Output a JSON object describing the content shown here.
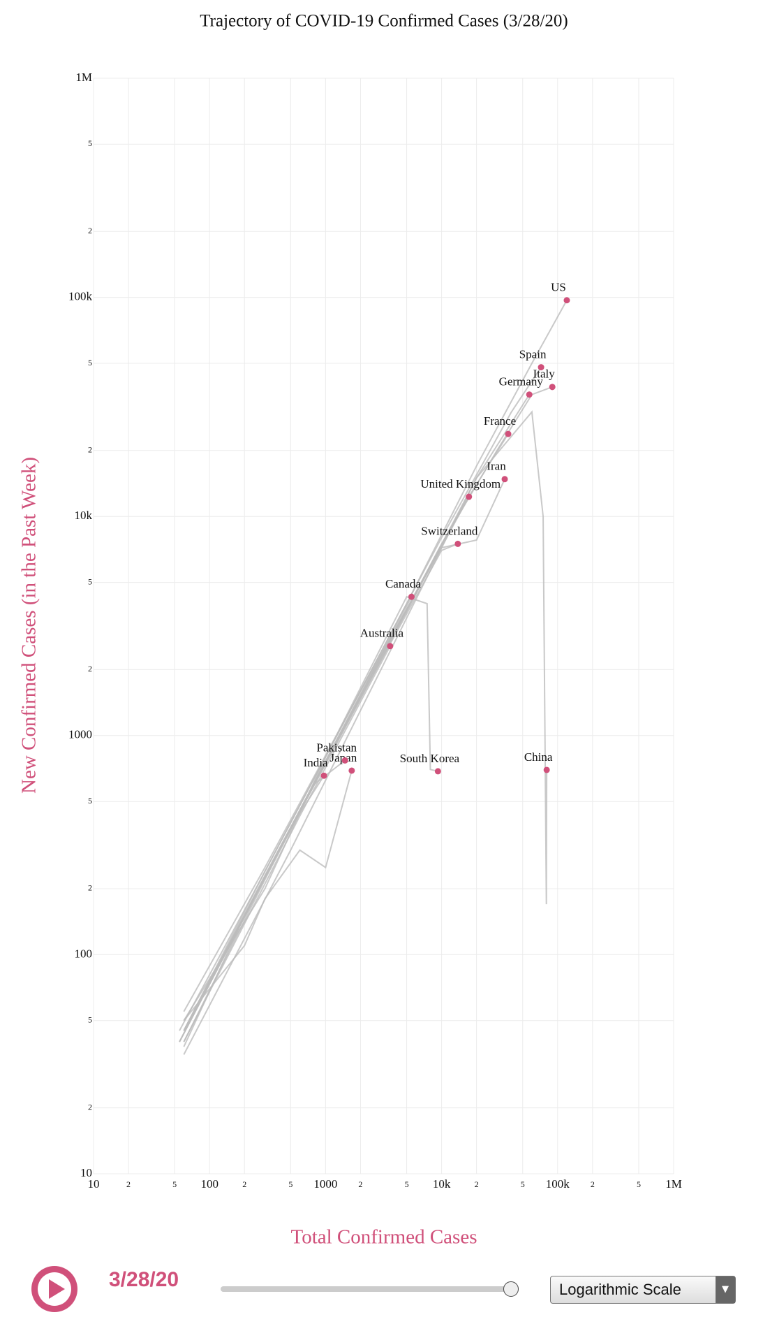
{
  "chart_data": {
    "type": "line",
    "title": "Trajectory of COVID-19 Confirmed Cases (3/28/20)",
    "xlabel": "Total Confirmed Cases",
    "ylabel": "New Confirmed Cases (in the Past Week)",
    "xscale": "log",
    "yscale": "log",
    "grid": true,
    "line_color": "#bbbbbb",
    "color": "#d0507a",
    "xlim": [
      10,
      1000000
    ],
    "ylim": [
      10,
      1000000
    ],
    "xticks": [
      10,
      {
        "value": 20,
        "label": "2"
      },
      {
        "value": 50,
        "label": "5"
      },
      100,
      {
        "value": 200,
        "label": "2"
      },
      {
        "value": 500,
        "label": "5"
      },
      1000,
      {
        "value": 2000,
        "label": "2"
      },
      {
        "value": 5000,
        "label": "5"
      },
      {
        "value": 10000,
        "label": "10k"
      },
      {
        "value": 20000,
        "label": "2"
      },
      {
        "value": 50000,
        "label": "5"
      },
      {
        "value": 100000,
        "label": "100k"
      },
      {
        "value": 200000,
        "label": "2"
      },
      {
        "value": 500000,
        "label": "5"
      },
      {
        "value": 1000000,
        "label": "1M"
      }
    ],
    "yticks": [
      10,
      {
        "value": 20,
        "label": "2"
      },
      {
        "value": 50,
        "label": "5"
      },
      100,
      {
        "value": 200,
        "label": "2"
      },
      {
        "value": 500,
        "label": "5"
      },
      1000,
      {
        "value": 2000,
        "label": "2"
      },
      {
        "value": 5000,
        "label": "5"
      },
      {
        "value": 10000,
        "label": "10k"
      },
      {
        "value": 20000,
        "label": "2"
      },
      {
        "value": 50000,
        "label": "5"
      },
      {
        "value": 100000,
        "label": "100k"
      },
      {
        "value": 200000,
        "label": "2"
      },
      {
        "value": 500000,
        "label": "5"
      },
      {
        "value": 1000000,
        "label": "1M"
      }
    ],
    "series": [
      {
        "name": "US",
        "x": [
          55,
          200,
          1000,
          5000,
          20000,
          60000,
          120000
        ],
        "y": [
          45,
          160,
          800,
          4000,
          17000,
          50000,
          97000
        ]
      },
      {
        "name": "Spain",
        "x": [
          60,
          300,
          2000,
          10000,
          40000,
          72000
        ],
        "y": [
          45,
          240,
          1600,
          8000,
          30000,
          48000
        ]
      },
      {
        "name": "Italy",
        "x": [
          60,
          300,
          2000,
          10000,
          30000,
          60000,
          90000
        ],
        "y": [
          45,
          230,
          1500,
          7500,
          20000,
          36000,
          39000
        ]
      },
      {
        "name": "Germany",
        "x": [
          55,
          400,
          3000,
          20000,
          57000
        ],
        "y": [
          40,
          300,
          2200,
          15000,
          36000
        ]
      },
      {
        "name": "France",
        "x": [
          60,
          500,
          3000,
          15000,
          37500
        ],
        "y": [
          45,
          380,
          2300,
          11000,
          23800
        ]
      },
      {
        "name": "Iran",
        "x": [
          60,
          300,
          2000,
          10000,
          20000,
          35000
        ],
        "y": [
          55,
          250,
          1600,
          7200,
          7800,
          14800
        ]
      },
      {
        "name": "United Kingdom",
        "x": [
          55,
          400,
          2500,
          17200
        ],
        "y": [
          40,
          300,
          1900,
          12300
        ]
      },
      {
        "name": "Switzerland",
        "x": [
          60,
          600,
          3000,
          10000,
          13800
        ],
        "y": [
          45,
          450,
          2200,
          7000,
          7500
        ]
      },
      {
        "name": "Canada",
        "x": [
          55,
          500,
          5500
        ],
        "y": [
          40,
          380,
          4300
        ]
      },
      {
        "name": "Australia",
        "x": [
          60,
          600,
          3600
        ],
        "y": [
          40,
          430,
          2560
        ]
      },
      {
        "name": "South Korea",
        "x": [
          60,
          300,
          1000,
          5000,
          7500,
          8000,
          9300
        ],
        "y": [
          50,
          200,
          800,
          4300,
          4000,
          700,
          687
        ]
      },
      {
        "name": "China",
        "x": [
          60,
          500,
          3000,
          20000,
          60000,
          75000,
          80000,
          80500
        ],
        "y": [
          35,
          300,
          2000,
          15000,
          30000,
          10000,
          170,
          697
        ]
      },
      {
        "name": "Japan",
        "x": [
          60,
          200,
          300,
          600,
          1000,
          1680
        ],
        "y": [
          50,
          110,
          180,
          300,
          250,
          692
        ]
      },
      {
        "name": "India",
        "x": [
          60,
          200,
          500,
          968
        ],
        "y": [
          38,
          150,
          380,
          656
        ]
      },
      {
        "name": "Pakistan",
        "x": [
          60,
          300,
          800,
          1470
        ],
        "y": [
          40,
          220,
          600,
          770
        ]
      }
    ]
  },
  "controls": {
    "date": "3/28/20",
    "scale_option": "Logarithmic Scale"
  }
}
